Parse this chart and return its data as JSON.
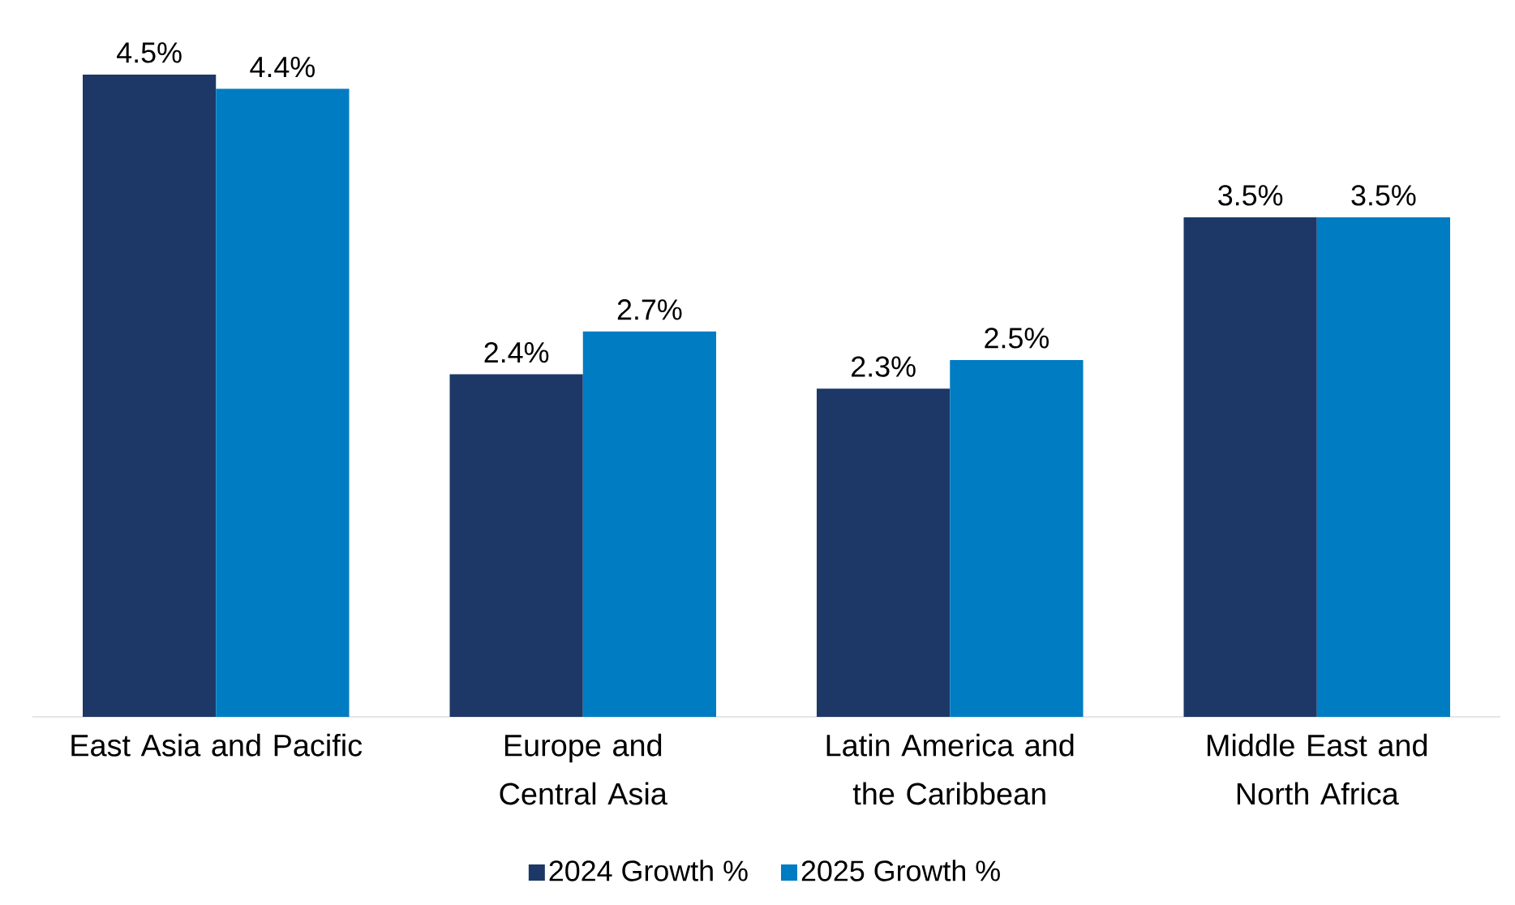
{
  "chart_data": {
    "type": "bar",
    "categories": [
      "East Asia and Pacific",
      "Europe and Central Asia",
      "Latin America and the Caribbean",
      "Middle East and North Africa"
    ],
    "series": [
      {
        "name": "2024 Growth %",
        "color": "#1d3867",
        "values": [
          4.5,
          2.4,
          2.3,
          3.5
        ],
        "value_labels": [
          "4.5%",
          "2.4%",
          "2.3%",
          "3.5%"
        ]
      },
      {
        "name": "2025 Growth %",
        "color": "#007cc3",
        "values": [
          4.4,
          2.7,
          2.5,
          3.5
        ],
        "value_labels": [
          "4.4%",
          "2.7%",
          "2.5%",
          "3.5%"
        ]
      }
    ],
    "legend": "bottom"
  }
}
